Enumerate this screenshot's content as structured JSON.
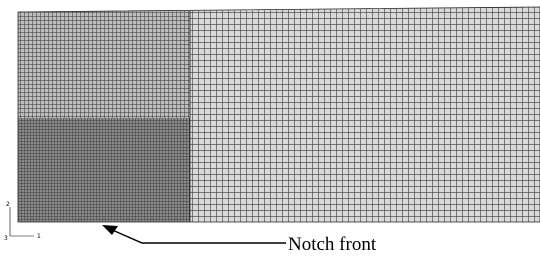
{
  "annotation": {
    "label": "Notch front"
  },
  "triad": {
    "labels": [
      "2",
      "1",
      "3"
    ]
  }
}
